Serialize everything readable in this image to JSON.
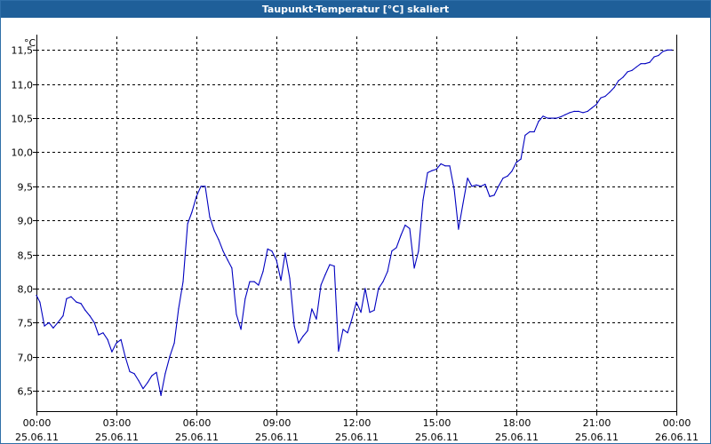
{
  "window": {
    "title": "Taupunkt-Temperatur [°C] skaliert"
  },
  "colors": {
    "titlebar": "#1f5f99",
    "series": "#0000c0",
    "grid": "#000000",
    "axis": "#000000"
  },
  "chart_data": {
    "type": "line",
    "title": "Taupunkt-Temperatur [°C] skaliert",
    "unit_label": "°C",
    "xlabel": "",
    "ylabel": "",
    "grid": true,
    "grid_style": "dashed",
    "x_unit": "hours since 25.06.11 00:00",
    "xlim": [
      0,
      24
    ],
    "ylim": [
      6.2,
      11.7
    ],
    "y_ticks": [
      6.5,
      7.0,
      7.5,
      8.0,
      8.5,
      9.0,
      9.5,
      10.0,
      10.5,
      11.0,
      11.5
    ],
    "y_tick_labels": [
      "6,5",
      "7,0",
      "7,5",
      "8,0",
      "8,5",
      "9,0",
      "9,5",
      "10,0",
      "10,5",
      "11,0",
      "11,5"
    ],
    "x_ticks": [
      0,
      3,
      6,
      9,
      12,
      15,
      18,
      21,
      24
    ],
    "x_tick_labels": [
      [
        "00:00",
        "25.06.11"
      ],
      [
        "03:00",
        "25.06.11"
      ],
      [
        "06:00",
        "25.06.11"
      ],
      [
        "09:00",
        "25.06.11"
      ],
      [
        "12:00",
        "25.06.11"
      ],
      [
        "15:00",
        "25.06.11"
      ],
      [
        "18:00",
        "25.06.11"
      ],
      [
        "21:00",
        "25.06.11"
      ],
      [
        "00:00",
        "26.06.11"
      ]
    ],
    "series": [
      {
        "name": "",
        "x": [
          0.0,
          0.13,
          0.3,
          0.47,
          0.63,
          0.8,
          1.0,
          1.13,
          1.3,
          1.5,
          1.67,
          1.83,
          2.0,
          2.17,
          2.33,
          2.5,
          2.67,
          2.83,
          3.0,
          3.17,
          3.33,
          3.5,
          3.67,
          3.83,
          4.0,
          4.17,
          4.33,
          4.5,
          4.67,
          4.83,
          5.0,
          5.17,
          5.33,
          5.5,
          5.67,
          5.83,
          6.0,
          6.17,
          6.33,
          6.5,
          6.67,
          6.83,
          7.0,
          7.17,
          7.33,
          7.5,
          7.67,
          7.83,
          8.0,
          8.17,
          8.33,
          8.5,
          8.67,
          8.83,
          9.0,
          9.17,
          9.33,
          9.5,
          9.67,
          9.83,
          10.0,
          10.17,
          10.33,
          10.5,
          10.67,
          10.83,
          11.0,
          11.17,
          11.33,
          11.5,
          11.67,
          11.83,
          12.0,
          12.17,
          12.33,
          12.5,
          12.67,
          12.83,
          13.0,
          13.17,
          13.33,
          13.5,
          13.67,
          13.83,
          14.0,
          14.17,
          14.33,
          14.5,
          14.67,
          14.83,
          15.0,
          15.17,
          15.33,
          15.5,
          15.67,
          15.83,
          16.0,
          16.17,
          16.33,
          16.5,
          16.67,
          16.83,
          17.0,
          17.17,
          17.33,
          17.5,
          17.67,
          17.83,
          18.0,
          18.17,
          18.33,
          18.5,
          18.67,
          18.83,
          19.0,
          19.17,
          19.33,
          19.5,
          19.67,
          19.83,
          20.0,
          20.17,
          20.33,
          20.5,
          20.67,
          20.83,
          21.0,
          21.17,
          21.33,
          21.5,
          21.67,
          21.83,
          22.0,
          22.17,
          22.33,
          22.5,
          22.67,
          22.83,
          23.0,
          23.17,
          23.33,
          23.5,
          23.67,
          23.83
        ],
        "y": [
          7.9,
          7.8,
          7.45,
          7.5,
          7.42,
          7.5,
          7.6,
          7.85,
          7.88,
          7.8,
          7.78,
          7.68,
          7.6,
          7.5,
          7.32,
          7.35,
          7.25,
          7.07,
          7.2,
          7.25,
          7.0,
          6.78,
          6.75,
          6.65,
          6.53,
          6.62,
          6.72,
          6.77,
          6.43,
          6.75,
          7.0,
          7.2,
          7.7,
          8.1,
          8.95,
          9.12,
          9.35,
          9.5,
          9.5,
          9.05,
          8.85,
          8.72,
          8.55,
          8.42,
          8.3,
          7.62,
          7.4,
          7.85,
          8.1,
          8.1,
          8.05,
          8.25,
          8.58,
          8.55,
          8.42,
          8.12,
          8.52,
          8.15,
          7.45,
          7.2,
          7.3,
          7.38,
          7.7,
          7.55,
          8.05,
          8.2,
          8.35,
          8.33,
          7.08,
          7.4,
          7.35,
          7.55,
          7.8,
          7.65,
          8.0,
          7.65,
          7.68,
          8.0,
          8.1,
          8.25,
          8.55,
          8.6,
          8.78,
          8.93,
          8.88,
          8.3,
          8.55,
          9.3,
          9.7,
          9.73,
          9.75,
          9.83,
          9.8,
          9.8,
          9.45,
          8.87,
          9.25,
          9.62,
          9.5,
          9.52,
          9.5,
          9.53,
          9.35,
          9.37,
          9.5,
          9.62,
          9.65,
          9.72,
          9.85,
          9.9,
          10.25,
          10.3,
          10.3,
          10.45,
          10.53,
          10.5,
          10.5,
          10.5,
          10.52,
          10.55,
          10.58,
          10.6,
          10.6,
          10.58,
          10.6,
          10.65,
          10.7,
          10.8,
          10.82,
          10.88,
          10.95,
          11.05,
          11.1,
          11.18,
          11.2,
          11.25,
          11.3,
          11.3,
          11.32,
          11.4,
          11.42,
          11.48,
          11.5,
          11.5
        ]
      }
    ]
  }
}
